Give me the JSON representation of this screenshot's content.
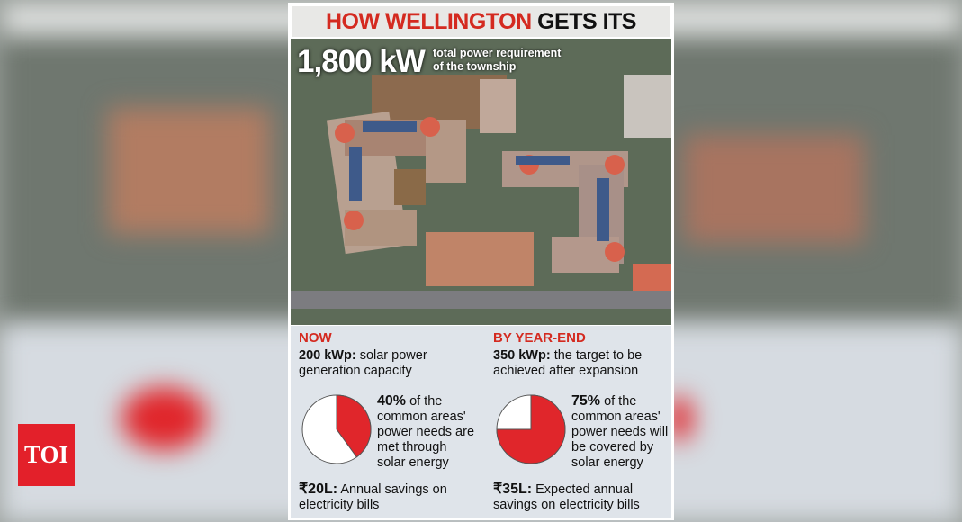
{
  "logo": "TOI",
  "header": {
    "title_highlight": "HOW WELLINGTON",
    "title_rest": "GETS ITS ENERGY"
  },
  "headline": {
    "value": "1,800 kW",
    "lines": [
      "total power requirement",
      "of the township"
    ]
  },
  "panels": [
    {
      "heading": "NOW",
      "capacity": "200 kWp:",
      "capacity_text": "solar power generation capacity",
      "share": 40,
      "share_label": "40%",
      "share_text": "of the common areas' power needs are met through solar energy",
      "savings": "₹20L:",
      "savings_text": "Annual savings on electricity bills",
      "color": "#e0262b"
    },
    {
      "heading": "BY YEAR-END",
      "capacity": "350 kWp:",
      "capacity_text": "the target to be achieved after expansion",
      "share": 75,
      "share_label": "75%",
      "share_text": "of the common areas' power needs will be covered by solar energy",
      "savings": "₹35L:",
      "savings_text": "Expected annual savings on electricity bills",
      "color": "#e0262b"
    }
  ]
}
